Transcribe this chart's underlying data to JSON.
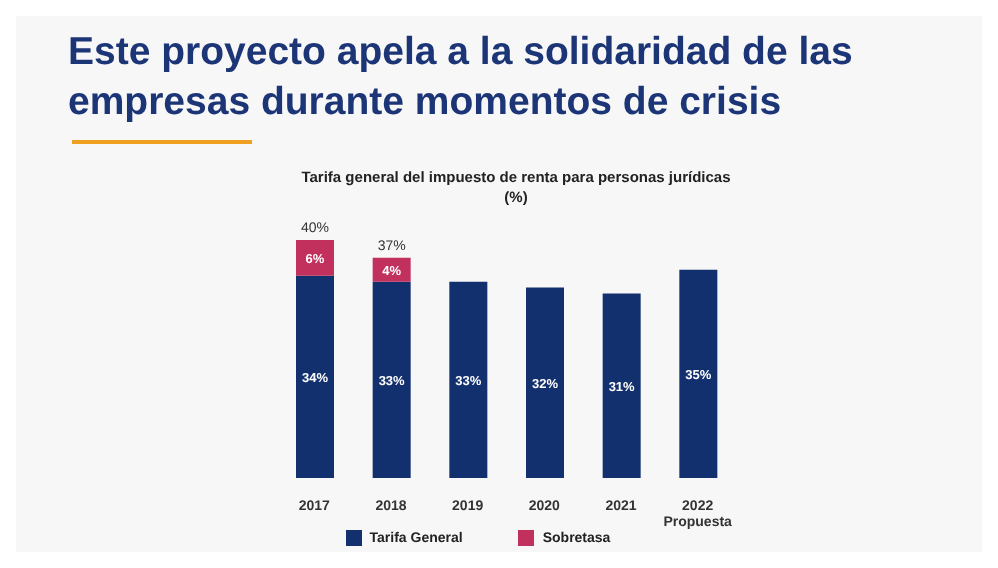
{
  "chart_data": {
    "type": "bar",
    "title": "Este proyecto apela a la solidaridad de las empresas durante momentos de crisis",
    "subtitle": "Tarifa general del impuesto de renta para personas jurídicas (%)",
    "categories": [
      "2017",
      "2018",
      "2019",
      "2020",
      "2021",
      "2022\nPropuesta"
    ],
    "stacked": true,
    "series": [
      {
        "name": "Tarifa General",
        "color": "#13306e",
        "values": [
          34,
          33,
          33,
          32,
          31,
          35
        ],
        "value_labels": [
          "34%",
          "33%",
          "33%",
          "32%",
          "31%",
          "35%"
        ]
      },
      {
        "name": "Sobretasa",
        "color": "#c2305e",
        "values": [
          6,
          4,
          null,
          null,
          null,
          null
        ],
        "value_labels": [
          "6%",
          "4%",
          null,
          null,
          null,
          null
        ]
      }
    ],
    "totals": [
      "40%",
      "37%",
      null,
      null,
      null,
      null
    ],
    "legend": "bottom",
    "grid": false,
    "tick_labels": "x"
  }
}
